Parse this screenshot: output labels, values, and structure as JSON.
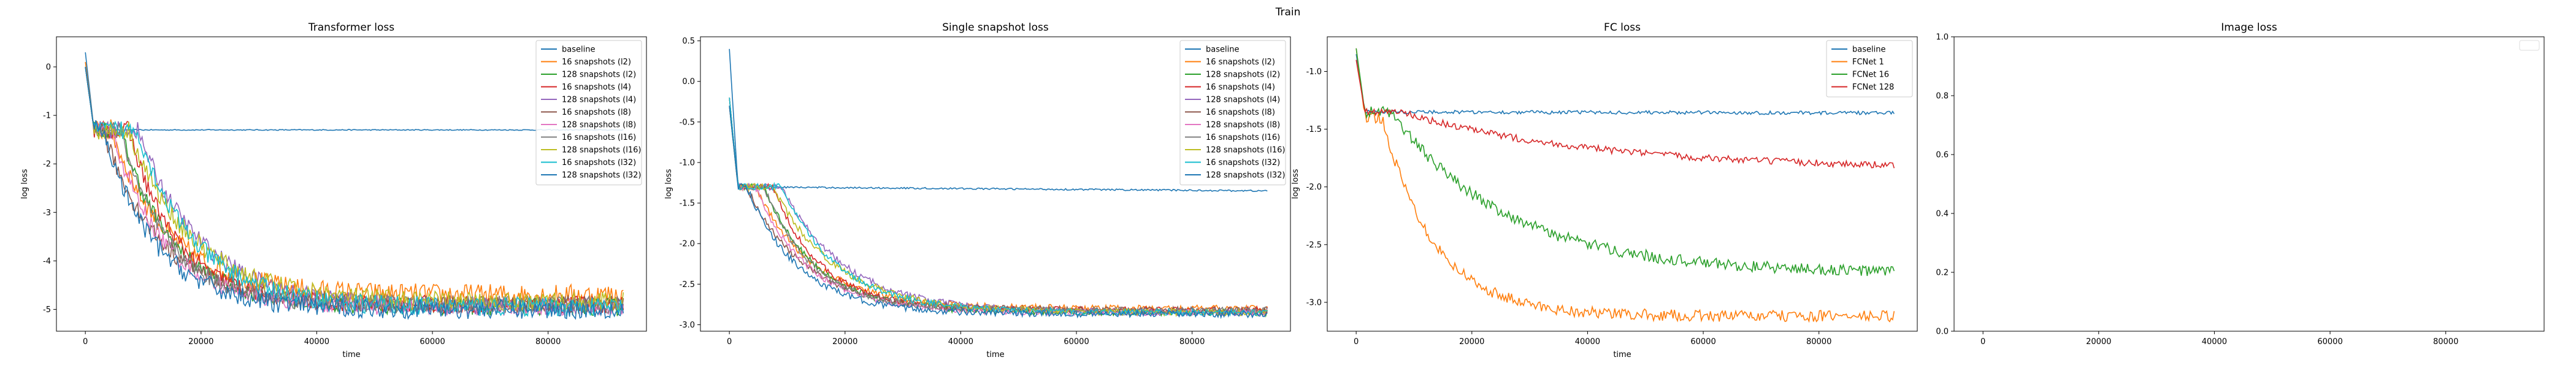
{
  "figure": {
    "suptitle": "Train"
  },
  "chart_data": [
    {
      "type": "line",
      "title": "Transformer loss",
      "xlabel": "time",
      "ylabel": "log loss",
      "xlim": [
        -5000,
        97000
      ],
      "ylim": [
        -5.45,
        0.62
      ],
      "xticks": [
        0,
        20000,
        40000,
        60000,
        80000
      ],
      "yticks": [
        0,
        -1,
        -2,
        -3,
        -4,
        -5
      ],
      "legend": "top-right",
      "x_end": 93000,
      "series": [
        {
          "name": "baseline",
          "color": "#1f77b4",
          "start": 0.3,
          "plateau": -1.3,
          "tail": -1.3,
          "spread": 0.01
        },
        {
          "name": "16 snapshots (l2)",
          "color": "#ff7f0e",
          "start": 0.1,
          "plateau": -1.3,
          "tail": -4.7,
          "spread": 0.22
        },
        {
          "name": "128 snapshots (l2)",
          "color": "#2ca02c",
          "start": 0.0,
          "plateau": -1.3,
          "tail": -4.95,
          "spread": 0.18
        },
        {
          "name": "16 snapshots (l4)",
          "color": "#d62728",
          "start": 0.0,
          "plateau": -1.3,
          "tail": -4.9,
          "spread": 0.18
        },
        {
          "name": "128 snapshots (l4)",
          "color": "#9467bd",
          "start": 0.0,
          "plateau": -1.3,
          "tail": -4.95,
          "spread": 0.18
        },
        {
          "name": "16 snapshots (l8)",
          "color": "#8c564b",
          "start": 0.0,
          "plateau": -1.3,
          "tail": -4.9,
          "spread": 0.18
        },
        {
          "name": "128 snapshots (l8)",
          "color": "#e377c2",
          "start": 0.0,
          "plateau": -1.3,
          "tail": -4.95,
          "spread": 0.18
        },
        {
          "name": "16 snapshots (l16)",
          "color": "#7f7f7f",
          "start": 0.0,
          "plateau": -1.3,
          "tail": -4.9,
          "spread": 0.18
        },
        {
          "name": "128 snapshots (l16)",
          "color": "#bcbd22",
          "start": 0.0,
          "plateau": -1.3,
          "tail": -4.85,
          "spread": 0.2
        },
        {
          "name": "16 snapshots (l32)",
          "color": "#17becf",
          "start": 0.0,
          "plateau": -1.3,
          "tail": -4.95,
          "spread": 0.2
        },
        {
          "name": "128 snapshots (l32)",
          "color": "#1f77b4",
          "start": 0.0,
          "plateau": -1.3,
          "tail": -5.0,
          "spread": 0.2
        }
      ]
    },
    {
      "type": "line",
      "title": "Single snapshot loss",
      "xlabel": "time",
      "ylabel": "log loss",
      "xlim": [
        -5000,
        97000
      ],
      "ylim": [
        -3.08,
        0.55
      ],
      "xticks": [
        0,
        20000,
        40000,
        60000,
        80000
      ],
      "yticks": [
        0.5,
        0.0,
        -0.5,
        -1.0,
        -1.5,
        -2.0,
        -2.5,
        -3.0
      ],
      "legend": "top-right",
      "x_end": 93000,
      "series": [
        {
          "name": "baseline",
          "color": "#1f77b4",
          "start": 0.4,
          "plateau": -1.3,
          "tail": -1.35,
          "spread": 0.01
        },
        {
          "name": "16 snapshots (l2)",
          "color": "#ff7f0e",
          "start": -0.2,
          "plateau": -1.3,
          "tail": -2.8,
          "spread": 0.04
        },
        {
          "name": "128 snapshots (l2)",
          "color": "#2ca02c",
          "start": -0.3,
          "plateau": -1.3,
          "tail": -2.85,
          "spread": 0.04
        },
        {
          "name": "16 snapshots (l4)",
          "color": "#d62728",
          "start": -0.2,
          "plateau": -1.3,
          "tail": -2.82,
          "spread": 0.04
        },
        {
          "name": "128 snapshots (l4)",
          "color": "#9467bd",
          "start": -0.3,
          "plateau": -1.3,
          "tail": -2.85,
          "spread": 0.04
        },
        {
          "name": "16 snapshots (l8)",
          "color": "#8c564b",
          "start": -0.2,
          "plateau": -1.3,
          "tail": -2.82,
          "spread": 0.04
        },
        {
          "name": "128 snapshots (l8)",
          "color": "#e377c2",
          "start": -0.3,
          "plateau": -1.3,
          "tail": -2.85,
          "spread": 0.04
        },
        {
          "name": "16 snapshots (l16)",
          "color": "#7f7f7f",
          "start": -0.2,
          "plateau": -1.3,
          "tail": -2.82,
          "spread": 0.04
        },
        {
          "name": "128 snapshots (l16)",
          "color": "#bcbd22",
          "start": -0.3,
          "plateau": -1.3,
          "tail": -2.85,
          "spread": 0.04
        },
        {
          "name": "16 snapshots (l32)",
          "color": "#17becf",
          "start": -0.2,
          "plateau": -1.3,
          "tail": -2.85,
          "spread": 0.04
        },
        {
          "name": "128 snapshots (l32)",
          "color": "#1f77b4",
          "start": -0.3,
          "plateau": -1.3,
          "tail": -2.87,
          "spread": 0.04
        }
      ]
    },
    {
      "type": "line",
      "title": "FC loss",
      "xlabel": "time",
      "ylabel": "log loss",
      "xlim": [
        -5000,
        97000
      ],
      "ylim": [
        -3.25,
        -0.7
      ],
      "xticks": [
        0,
        20000,
        40000,
        60000,
        80000
      ],
      "yticks": [
        -1.0,
        -1.5,
        -2.0,
        -2.5,
        -3.0
      ],
      "legend": "top-right",
      "x_end": 93000,
      "series": [
        {
          "name": "baseline",
          "color": "#1f77b4",
          "start": -0.85,
          "plateau": -1.35,
          "tail": -1.36,
          "spread": 0.015
        },
        {
          "name": "FCNet 1",
          "color": "#ff7f0e",
          "start": -0.8,
          "plateau": -1.4,
          "tail": -3.12,
          "spread": 0.05
        },
        {
          "name": "FCNet 16",
          "color": "#2ca02c",
          "start": -0.8,
          "plateau": -1.35,
          "tail": -2.75,
          "spread": 0.05
        },
        {
          "name": "FCNet 128",
          "color": "#d62728",
          "start": -0.9,
          "plateau": -1.35,
          "tail": -1.85,
          "spread": 0.03
        }
      ]
    },
    {
      "type": "line",
      "title": "Image loss",
      "xlabel": "",
      "ylabel": "",
      "xlim": [
        -5000,
        97000
      ],
      "ylim": [
        0,
        1
      ],
      "xticks": [
        0,
        20000,
        40000,
        60000,
        80000
      ],
      "yticks": [
        0.0,
        0.2,
        0.4,
        0.6,
        0.8,
        1.0
      ],
      "legend": "top-right",
      "series": []
    }
  ]
}
